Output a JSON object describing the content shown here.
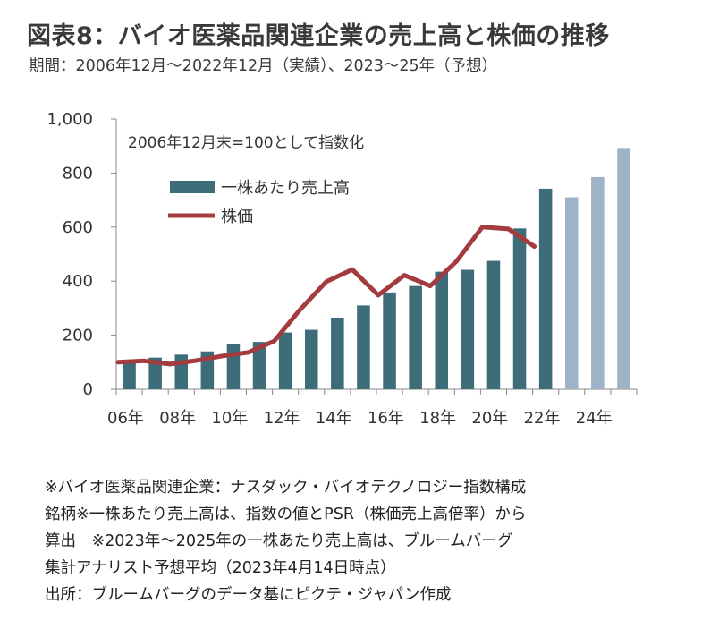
{
  "title": "図表8：バイオ医薬品関連企業の売上高と株価の推移",
  "subtitle": "期間：2006年12月～2022年12月（実績）、2023～25年（予想）",
  "chart_data": {
    "type": "bar",
    "annotation": "2006年12月末=100として指数化",
    "ylim": [
      0,
      1000
    ],
    "yticks": [
      "0",
      "200",
      "400",
      "600",
      "800",
      "1,000"
    ],
    "xtick_labels": [
      "06年",
      "08年",
      "10年",
      "12年",
      "14年",
      "16年",
      "18年",
      "20年",
      "22年",
      "24年"
    ],
    "years": [
      2006,
      2007,
      2008,
      2009,
      2010,
      2011,
      2012,
      2013,
      2014,
      2015,
      2016,
      2017,
      2018,
      2019,
      2020,
      2021,
      2022,
      2023,
      2024,
      2025
    ],
    "series": [
      {
        "name": "一株あたり売上高",
        "kind": "bar",
        "color": "#3e6d7a",
        "forecast_color": "#9fb3c8",
        "values": [
          100,
          117,
          128,
          140,
          167,
          175,
          210,
          220,
          265,
          310,
          358,
          382,
          435,
          442,
          475,
          595,
          742,
          710,
          785,
          893
        ],
        "forecast_from": 2023
      },
      {
        "name": "株価",
        "kind": "line",
        "color": "#a33b3f",
        "values": [
          100,
          105,
          93,
          106,
          123,
          136,
          178,
          295,
          398,
          443,
          348,
          422,
          382,
          473,
          600,
          593,
          528
        ]
      }
    ],
    "grid": false,
    "legend_position": "top-left"
  },
  "notes": [
    "※バイオ医薬品関連企業：ナスダック・バイオテクノロジー指数構成",
    "銘柄※一株あたり売上高は、指数の値とPSR（株価売上高倍率）から",
    "算出　※2023年～2025年の一株あたり売上高は、ブルームバーグ",
    "集計アナリスト予想平均（2023年4月14日時点）",
    "出所：ブルームバーグのデータ基にピクテ・ジャパン作成"
  ]
}
